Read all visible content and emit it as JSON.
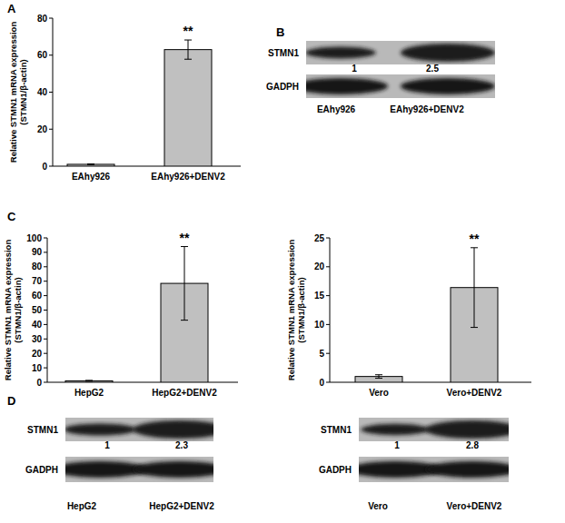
{
  "panel_labels": [
    "A",
    "B",
    "C",
    "D"
  ],
  "chart_data": [
    {
      "type": "bar",
      "categories": [
        "EAhy926",
        "EAhy926+DENV2"
      ],
      "values": [
        1,
        63
      ],
      "errors": [
        0.2,
        5.2
      ],
      "colors": [
        "#c0c0c0",
        "#c0c0c0"
      ],
      "ylim": [
        0,
        80
      ],
      "yticks": [
        0,
        20,
        40,
        60,
        80
      ],
      "grid": false,
      "y_label": [
        "Relative STMN1 mRNA expression",
        "(STMN1/β-actin)"
      ],
      "annotations": [
        {
          "text": "**",
          "x": "EAhy926+DENV2"
        }
      ]
    },
    {
      "type": "bar",
      "categories": [
        "HepG2",
        "HepG2+DENV2"
      ],
      "values": [
        1,
        68.5
      ],
      "errors": [
        0.3,
        25.5
      ],
      "colors": [
        "#c0c0c0",
        "#c0c0c0"
      ],
      "ylim": [
        0,
        100
      ],
      "yticks": [
        0,
        10,
        20,
        30,
        40,
        50,
        60,
        70,
        80,
        90,
        100
      ],
      "grid": false,
      "y_label": [
        "Relative STMN1 mRNA expression",
        "(STMN1/β-actin)"
      ],
      "annotations": [
        {
          "text": "**",
          "x": "HepG2+DENV2"
        }
      ]
    },
    {
      "type": "bar",
      "categories": [
        "Vero",
        "Vero+DENV2"
      ],
      "values": [
        1,
        16.4
      ],
      "errors": [
        0.3,
        6.9
      ],
      "colors": [
        "#c0c0c0",
        "#c0c0c0"
      ],
      "ylim": [
        0,
        25
      ],
      "yticks": [
        0,
        5,
        10,
        15,
        20,
        25
      ],
      "grid": false,
      "y_label": [
        "Relative STMN1 mRNA expression",
        "(STMN1/β-actin)"
      ],
      "annotations": [
        {
          "text": "**",
          "x": "Vero+DENV2"
        }
      ]
    }
  ],
  "blots": [
    {
      "rows": [
        "STMN1",
        "GADPH"
      ],
      "ratios": [
        1,
        2.5
      ],
      "lanes": [
        "EAhy926",
        "EAhy926+DENV2"
      ]
    },
    {
      "rows": [
        "STMN1",
        "GADPH"
      ],
      "ratios": [
        1,
        2.3
      ],
      "lanes": [
        "HepG2",
        "HepG2+DENV2"
      ]
    },
    {
      "rows": [
        "STMN1",
        "GADPH"
      ],
      "ratios": [
        1,
        2.8
      ],
      "lanes": [
        "Vero",
        "Vero+DENV2"
      ]
    }
  ]
}
